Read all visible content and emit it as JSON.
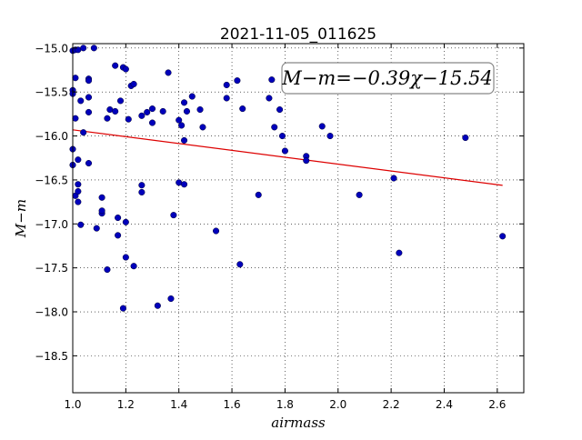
{
  "chart_data": {
    "type": "scatter",
    "title": "2021-11-05_011625",
    "xlabel": "airmass",
    "ylabel": "M−m",
    "xlim": [
      1.0,
      2.7
    ],
    "ylim": [
      -14.95,
      -18.92
    ],
    "x_ticks": [
      1.0,
      1.2,
      1.4,
      1.6,
      1.8,
      2.0,
      2.2,
      2.4,
      2.6
    ],
    "x_tick_labels": [
      "1.0",
      "1.2",
      "1.4",
      "1.6",
      "1.8",
      "2.0",
      "2.2",
      "2.4",
      "2.6"
    ],
    "y_ticks": [
      -15.0,
      -15.5,
      -16.0,
      -16.5,
      -17.0,
      -17.5,
      -18.0,
      -18.5
    ],
    "y_tick_labels": [
      "−15.0",
      "−15.5",
      "−16.0",
      "−16.5",
      "−17.0",
      "−17.5",
      "−18.0",
      "−18.5"
    ],
    "grid": true,
    "annotation": "M−m=−0.39χ−15.54",
    "fit": {
      "slope": -0.39,
      "intercept": -15.54,
      "x_range": [
        1.0,
        2.62
      ],
      "color": "#dd0000"
    },
    "point_color": "#0000bb",
    "points": [
      [
        1.0,
        -15.03
      ],
      [
        1.01,
        -15.02
      ],
      [
        1.02,
        -15.02
      ],
      [
        1.04,
        -15.0
      ],
      [
        1.08,
        -15.0
      ],
      [
        1.0,
        -15.48
      ],
      [
        1.0,
        -15.52
      ],
      [
        1.01,
        -15.34
      ],
      [
        1.06,
        -15.35
      ],
      [
        1.06,
        -15.37
      ],
      [
        1.06,
        -15.56
      ],
      [
        1.06,
        -15.73
      ],
      [
        1.03,
        -15.6
      ],
      [
        1.01,
        -15.8
      ],
      [
        1.04,
        -15.96
      ],
      [
        1.0,
        -16.15
      ],
      [
        1.02,
        -16.27
      ],
      [
        1.0,
        -16.33
      ],
      [
        1.06,
        -16.31
      ],
      [
        1.02,
        -16.55
      ],
      [
        1.01,
        -16.68
      ],
      [
        1.02,
        -16.63
      ],
      [
        1.02,
        -16.75
      ],
      [
        1.03,
        -17.01
      ],
      [
        1.09,
        -17.05
      ],
      [
        1.11,
        -16.88
      ],
      [
        1.11,
        -16.85
      ],
      [
        1.11,
        -16.7
      ],
      [
        1.13,
        -15.8
      ],
      [
        1.14,
        -15.7
      ],
      [
        1.16,
        -15.72
      ],
      [
        1.16,
        -15.2
      ],
      [
        1.19,
        -15.22
      ],
      [
        1.2,
        -15.24
      ],
      [
        1.18,
        -15.6
      ],
      [
        1.21,
        -15.81
      ],
      [
        1.22,
        -15.43
      ],
      [
        1.23,
        -15.41
      ],
      [
        1.26,
        -15.77
      ],
      [
        1.28,
        -15.73
      ],
      [
        1.3,
        -15.69
      ],
      [
        1.3,
        -15.85
      ],
      [
        1.34,
        -15.72
      ],
      [
        1.36,
        -15.28
      ],
      [
        1.17,
        -16.93
      ],
      [
        1.2,
        -16.98
      ],
      [
        1.17,
        -17.13
      ],
      [
        1.2,
        -17.38
      ],
      [
        1.23,
        -17.48
      ],
      [
        1.13,
        -17.52
      ],
      [
        1.19,
        -17.96
      ],
      [
        1.26,
        -16.56
      ],
      [
        1.26,
        -16.64
      ],
      [
        1.38,
        -16.9
      ],
      [
        1.32,
        -17.93
      ],
      [
        1.37,
        -17.85
      ],
      [
        1.4,
        -15.82
      ],
      [
        1.41,
        -15.88
      ],
      [
        1.42,
        -15.62
      ],
      [
        1.43,
        -15.72
      ],
      [
        1.45,
        -15.55
      ],
      [
        1.48,
        -15.7
      ],
      [
        1.49,
        -15.9
      ],
      [
        1.42,
        -16.05
      ],
      [
        1.4,
        -16.53
      ],
      [
        1.42,
        -16.55
      ],
      [
        1.54,
        -17.08
      ],
      [
        1.58,
        -15.57
      ],
      [
        1.58,
        -15.42
      ],
      [
        1.62,
        -15.37
      ],
      [
        1.64,
        -15.69
      ],
      [
        1.63,
        -17.46
      ],
      [
        1.7,
        -16.67
      ],
      [
        1.74,
        -15.57
      ],
      [
        1.75,
        -15.36
      ],
      [
        1.76,
        -15.9
      ],
      [
        1.78,
        -15.7
      ],
      [
        1.79,
        -16.0
      ],
      [
        1.8,
        -16.17
      ],
      [
        1.88,
        -16.23
      ],
      [
        1.88,
        -16.28
      ],
      [
        1.94,
        -15.89
      ],
      [
        1.97,
        -16.0
      ],
      [
        2.08,
        -16.67
      ],
      [
        2.21,
        -16.48
      ],
      [
        2.23,
        -17.33
      ],
      [
        2.48,
        -16.02
      ],
      [
        2.62,
        -17.14
      ]
    ]
  }
}
